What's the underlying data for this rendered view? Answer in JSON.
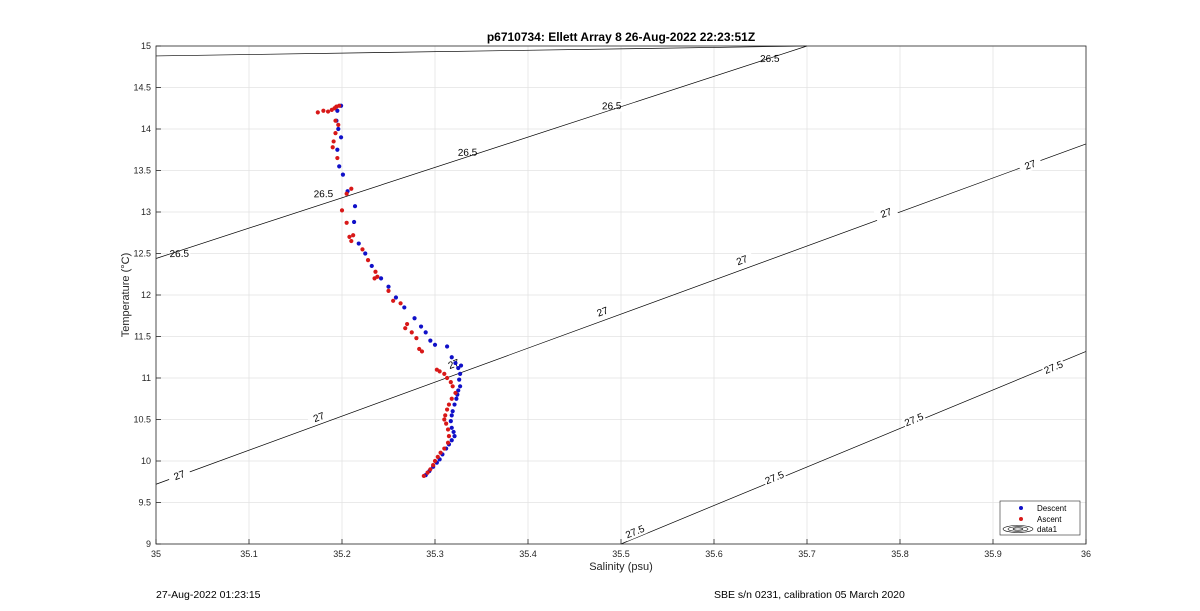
{
  "chart_data": {
    "type": "scatter",
    "title": "p6710734: Ellett Array 8 26-Aug-2022 22:23:51Z",
    "xlabel": "Salinity (psu)",
    "ylabel": "Temperature (°C)",
    "xlim": [
      35,
      36
    ],
    "ylim": [
      9,
      15
    ],
    "xticks": [
      "35",
      "35.1",
      "35.2",
      "35.3",
      "35.4",
      "35.5",
      "35.6",
      "35.7",
      "35.8",
      "35.9",
      "36"
    ],
    "yticks": [
      "9",
      "9.5",
      "10",
      "10.5",
      "11",
      "11.5",
      "12",
      "12.5",
      "13",
      "13.5",
      "14",
      "14.5",
      "15"
    ],
    "grid": true,
    "legend_position": "bottom-right",
    "legend": [
      "Descent",
      "Ascent",
      "data1"
    ],
    "colors": {
      "descent": "#1010c8",
      "ascent": "#d81818",
      "contour": "#000000"
    },
    "contours": [
      {
        "level": "26.5",
        "points": [
          [
            35.0,
            14.88
          ],
          [
            35.7,
            15.0
          ]
        ],
        "labels": [
          [
            35.66,
            14.85
          ],
          [
            35.49,
            14.28
          ],
          [
            35.335,
            13.72
          ],
          [
            35.18,
            13.22
          ],
          [
            35.025,
            12.5
          ]
        ]
      },
      {
        "level": "26.5",
        "points": [
          [
            35.0,
            12.44
          ],
          [
            35.7,
            15.0
          ]
        ],
        "labels": []
      },
      {
        "level": "27",
        "points": [
          [
            35.0,
            9.72
          ],
          [
            36.0,
            13.82
          ]
        ],
        "labels": [
          [
            35.94,
            13.57
          ],
          [
            35.785,
            12.99
          ],
          [
            35.63,
            12.42
          ],
          [
            35.48,
            11.8
          ],
          [
            35.32,
            11.17
          ],
          [
            35.175,
            10.53
          ],
          [
            35.025,
            9.83
          ]
        ]
      },
      {
        "level": "27.5",
        "points": [
          [
            35.5,
            9.0
          ],
          [
            36.0,
            11.32
          ]
        ],
        "labels": [
          [
            35.965,
            11.13
          ],
          [
            35.815,
            10.5
          ],
          [
            35.665,
            9.8
          ],
          [
            35.515,
            9.15
          ]
        ]
      }
    ],
    "series": [
      {
        "name": "Descent",
        "points": [
          [
            35.199,
            14.28
          ],
          [
            35.195,
            14.22
          ],
          [
            35.194,
            14.1
          ],
          [
            35.196,
            14.0
          ],
          [
            35.199,
            13.9
          ],
          [
            35.195,
            13.75
          ],
          [
            35.197,
            13.55
          ],
          [
            35.201,
            13.45
          ],
          [
            35.206,
            13.25
          ],
          [
            35.214,
            13.07
          ],
          [
            35.213,
            12.88
          ],
          [
            35.218,
            12.62
          ],
          [
            35.225,
            12.5
          ],
          [
            35.232,
            12.35
          ],
          [
            35.242,
            12.2
          ],
          [
            35.25,
            12.1
          ],
          [
            35.258,
            11.97
          ],
          [
            35.267,
            11.85
          ],
          [
            35.278,
            11.72
          ],
          [
            35.285,
            11.62
          ],
          [
            35.29,
            11.55
          ],
          [
            35.295,
            11.45
          ],
          [
            35.3,
            11.4
          ],
          [
            35.313,
            11.38
          ],
          [
            35.318,
            11.25
          ],
          [
            35.322,
            11.18
          ],
          [
            35.325,
            11.12
          ],
          [
            35.328,
            11.15
          ],
          [
            35.327,
            11.05
          ],
          [
            35.326,
            10.98
          ],
          [
            35.327,
            10.9
          ],
          [
            35.325,
            10.85
          ],
          [
            35.324,
            10.8
          ],
          [
            35.323,
            10.75
          ],
          [
            35.321,
            10.68
          ],
          [
            35.319,
            10.6
          ],
          [
            35.318,
            10.55
          ],
          [
            35.317,
            10.48
          ],
          [
            35.318,
            10.4
          ],
          [
            35.32,
            10.35
          ],
          [
            35.321,
            10.3
          ],
          [
            35.318,
            10.25
          ],
          [
            35.315,
            10.2
          ],
          [
            35.312,
            10.15
          ],
          [
            35.308,
            10.08
          ],
          [
            35.305,
            10.02
          ],
          [
            35.302,
            9.98
          ],
          [
            35.298,
            9.93
          ],
          [
            35.294,
            9.88
          ],
          [
            35.29,
            9.83
          ]
        ]
      },
      {
        "name": "Ascent",
        "points": [
          [
            35.174,
            14.2
          ],
          [
            35.18,
            14.22
          ],
          [
            35.185,
            14.21
          ],
          [
            35.189,
            14.23
          ],
          [
            35.192,
            14.25
          ],
          [
            35.194,
            14.27
          ],
          [
            35.197,
            14.28
          ],
          [
            35.193,
            14.1
          ],
          [
            35.196,
            14.05
          ],
          [
            35.193,
            13.95
          ],
          [
            35.191,
            13.85
          ],
          [
            35.19,
            13.78
          ],
          [
            35.195,
            13.65
          ],
          [
            35.205,
            13.22
          ],
          [
            35.21,
            13.28
          ],
          [
            35.2,
            13.02
          ],
          [
            35.205,
            12.87
          ],
          [
            35.208,
            12.7
          ],
          [
            35.21,
            12.65
          ],
          [
            35.212,
            12.72
          ],
          [
            35.222,
            12.55
          ],
          [
            35.228,
            12.42
          ],
          [
            35.236,
            12.28
          ],
          [
            35.235,
            12.2
          ],
          [
            35.238,
            12.22
          ],
          [
            35.25,
            12.05
          ],
          [
            35.255,
            11.93
          ],
          [
            35.263,
            11.9
          ],
          [
            35.27,
            11.65
          ],
          [
            35.268,
            11.6
          ],
          [
            35.275,
            11.55
          ],
          [
            35.28,
            11.48
          ],
          [
            35.283,
            11.35
          ],
          [
            35.286,
            11.32
          ],
          [
            35.302,
            11.1
          ],
          [
            35.305,
            11.08
          ],
          [
            35.31,
            11.05
          ],
          [
            35.313,
            11.0
          ],
          [
            35.317,
            10.95
          ],
          [
            35.319,
            10.9
          ],
          [
            35.322,
            10.82
          ],
          [
            35.318,
            10.75
          ],
          [
            35.315,
            10.68
          ],
          [
            35.313,
            10.62
          ],
          [
            35.311,
            10.55
          ],
          [
            35.31,
            10.5
          ],
          [
            35.312,
            10.45
          ],
          [
            35.314,
            10.38
          ],
          [
            35.315,
            10.3
          ],
          [
            35.314,
            10.22
          ],
          [
            35.31,
            10.15
          ],
          [
            35.306,
            10.1
          ],
          [
            35.303,
            10.05
          ],
          [
            35.3,
            10.0
          ],
          [
            35.298,
            9.95
          ],
          [
            35.295,
            9.9
          ],
          [
            35.292,
            9.86
          ],
          [
            35.288,
            9.82
          ]
        ]
      }
    ]
  },
  "footer": {
    "left": "27-Aug-2022 01:23:15",
    "right": "SBE s/n 0231, calibration 05 March 2020"
  }
}
